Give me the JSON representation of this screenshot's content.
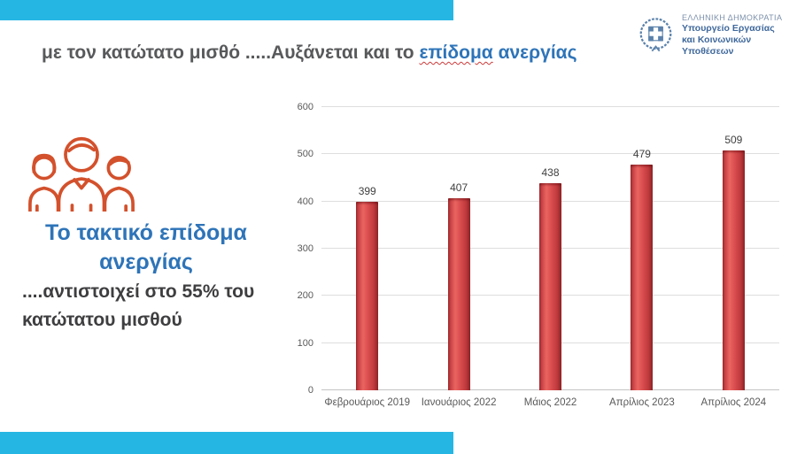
{
  "slide": {
    "title": {
      "part_gray": "με τον κατώτατο μισθό .....Αυξάνεται και το",
      "part_blue_underlined": "επίδομα",
      "part_blue": "ανεργίας"
    },
    "header_logo": {
      "line1": "ΕΛΛΗΝΙΚΗ ΔΗΜΟΚΡΑΤΙΑ",
      "line2": "Υπουργείο Εργασίας",
      "line3": "και Κοινωνικών Υποθέσεων"
    },
    "left_panel": {
      "icon": "people-group-icon",
      "heading_line1": "Το τακτικό επίδομα",
      "heading_line2": "ανεργίας",
      "subtitle_line1": "....αντιστοιχεί στο 55% του",
      "subtitle_line2": "κατώτατου μισθού"
    }
  },
  "colors": {
    "accent_cyan": "#26b6e3",
    "title_gray": "#58595b",
    "title_blue": "#2e74b8",
    "subtitle_dark": "#3e3e40",
    "icon_orange": "#d3512c",
    "bar_red": "#cf4345",
    "gridline_gray": "#dedede",
    "axis_text_gray": "#595959",
    "logo_blue": "#5b82ab"
  },
  "chart_data": {
    "type": "bar",
    "categories": [
      "Φεβρουάριος 2019",
      "Ιανουάριος 2022",
      "Μάιος 2022",
      "Απρίλιος 2023",
      "Απρίλιος 2024"
    ],
    "values": [
      399,
      407,
      438,
      479,
      509
    ],
    "title": "",
    "xlabel": "",
    "ylabel": "",
    "ylim": [
      0,
      600
    ],
    "yticks": [
      0,
      100,
      200,
      300,
      400,
      500,
      600
    ],
    "grid": true,
    "legend": false,
    "data_labels_shown": true,
    "bar_color_hex": "#cf4345"
  }
}
